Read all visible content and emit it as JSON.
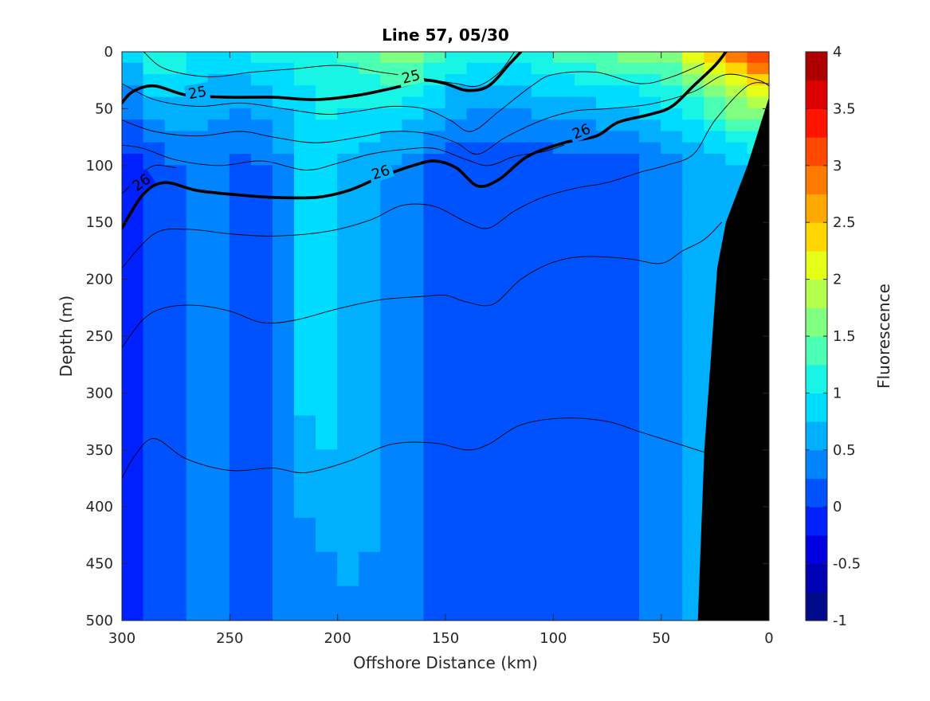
{
  "chart_data": {
    "type": "heatmap",
    "title": "Line 57, 05/30",
    "xlabel": "Offshore Distance (km)",
    "ylabel": "Depth (m)",
    "colorbar_label": "Fluorescence",
    "xlim": [
      300,
      0
    ],
    "ylim": [
      500,
      0
    ],
    "x_reversed": true,
    "y_reversed": true,
    "xticks": [
      300,
      250,
      200,
      150,
      100,
      50,
      0
    ],
    "yticks": [
      0,
      50,
      100,
      150,
      200,
      250,
      300,
      350,
      400,
      450,
      500
    ],
    "colorbar": {
      "min": -1,
      "max": 4,
      "step": 0.25,
      "ticks": [
        -1,
        -0.5,
        0,
        0.5,
        1,
        1.5,
        2,
        2.5,
        3,
        3.5,
        4
      ],
      "colors": [
        "#000a8a",
        "#0000b4",
        "#0000e0",
        "#0020ff",
        "#0052ff",
        "#0084ff",
        "#00b0ff",
        "#00dcff",
        "#18f5e6",
        "#4affb4",
        "#80ff80",
        "#b4ff4c",
        "#e6ff18",
        "#ffd600",
        "#ffa800",
        "#ff7a00",
        "#ff4800",
        "#ff1400",
        "#dc0000",
        "#ae0000"
      ]
    },
    "grid": "off",
    "fluorescence_field": {
      "x": [
        300,
        290,
        280,
        270,
        260,
        250,
        240,
        230,
        220,
        210,
        200,
        190,
        180,
        170,
        160,
        150,
        140,
        130,
        120,
        110,
        100,
        90,
        80,
        70,
        60,
        50,
        40,
        30,
        20,
        10,
        0
      ],
      "depth": [
        0,
        10,
        20,
        30,
        40,
        50,
        60,
        70,
        80,
        90,
        100,
        120,
        140,
        160,
        180,
        200,
        230,
        260,
        290,
        320,
        350,
        380,
        410,
        440,
        470,
        500
      ],
      "column_profiles": [
        {
          "x": 300,
          "top": 0.8,
          "mid": -0.2,
          "deep": -0.4
        },
        {
          "x": 290,
          "top": 1.3,
          "mid": -0.05,
          "deep": -0.1
        },
        {
          "x": 280,
          "top": 1.5,
          "mid": 0.2,
          "deep": 0.2
        },
        {
          "x": 260,
          "top": 0.9,
          "mid": 0.35,
          "deep": 0.3
        },
        {
          "x": 240,
          "top": 1.1,
          "mid": 0.1,
          "deep": 0.1
        },
        {
          "x": 220,
          "top": 1.2,
          "mid": 0.6,
          "deep": 0.3
        },
        {
          "x": 210,
          "top": 1.2,
          "mid": 0.95,
          "deep": 0.35
        },
        {
          "x": 190,
          "top": 1.5,
          "mid": 0.6,
          "deep": 0.5
        },
        {
          "x": 170,
          "top": 1.9,
          "mid": 0.45,
          "deep": 0.35
        },
        {
          "x": 150,
          "top": 1.4,
          "mid": 0.1,
          "deep": 0.1
        },
        {
          "x": 130,
          "top": 1.1,
          "mid": 0.1,
          "deep": 0.1
        },
        {
          "x": 100,
          "top": 1.4,
          "mid": 0.1,
          "deep": 0.1
        },
        {
          "x": 70,
          "top": 1.7,
          "mid": 0.15,
          "deep": 0.1
        },
        {
          "x": 50,
          "top": 1.7,
          "mid": 0.3,
          "deep": 0.3
        },
        {
          "x": 20,
          "top": 2.8,
          "mid": 0.7,
          "deep": 0.7
        },
        {
          "x": 0,
          "top": 3.8,
          "mid": 0.7,
          "deep": 0.7
        }
      ]
    },
    "seafloor": {
      "color": "#000000",
      "boundary": [
        {
          "x": 0,
          "depth": 40
        },
        {
          "x": 10,
          "depth": 100
        },
        {
          "x": 20,
          "depth": 150
        },
        {
          "x": 24,
          "depth": 190
        },
        {
          "x": 30,
          "depth": 350
        },
        {
          "x": 33,
          "depth": 500
        }
      ]
    },
    "density_contours": [
      {
        "level": 25,
        "bold": true,
        "label": "25",
        "points": [
          [
            300,
            45
          ],
          [
            295,
            35
          ],
          [
            285,
            30
          ],
          [
            270,
            38
          ],
          [
            250,
            40
          ],
          [
            230,
            40
          ],
          [
            210,
            42
          ],
          [
            190,
            38
          ],
          [
            170,
            30
          ],
          [
            160,
            25
          ],
          [
            150,
            28
          ],
          [
            140,
            34
          ],
          [
            130,
            30
          ],
          [
            120,
            10
          ],
          [
            115,
            0
          ]
        ]
      },
      {
        "level": 26,
        "bold": true,
        "label": "26",
        "points": [
          [
            300,
            155
          ],
          [
            290,
            125
          ],
          [
            280,
            115
          ],
          [
            265,
            122
          ],
          [
            245,
            126
          ],
          [
            230,
            128
          ],
          [
            210,
            128
          ],
          [
            195,
            122
          ],
          [
            180,
            110
          ],
          [
            165,
            100
          ],
          [
            155,
            96
          ],
          [
            145,
            102
          ],
          [
            135,
            118
          ],
          [
            125,
            112
          ],
          [
            112,
            92
          ],
          [
            95,
            80
          ],
          [
            80,
            74
          ],
          [
            70,
            62
          ],
          [
            55,
            55
          ],
          [
            45,
            48
          ],
          [
            35,
            30
          ],
          [
            25,
            12
          ],
          [
            20,
            0
          ]
        ]
      },
      {
        "level": null,
        "bold": false,
        "label": "",
        "points": [
          [
            290,
            0
          ],
          [
            280,
            15
          ],
          [
            260,
            22
          ],
          [
            240,
            18
          ],
          [
            220,
            15
          ],
          [
            200,
            12
          ],
          [
            180,
            18
          ],
          [
            165,
            22
          ],
          [
            145,
            28
          ],
          [
            135,
            30
          ],
          [
            125,
            18
          ],
          [
            118,
            0
          ]
        ]
      },
      {
        "level": null,
        "bold": false,
        "label": "",
        "points": [
          [
            300,
            28
          ],
          [
            285,
            42
          ],
          [
            265,
            48
          ],
          [
            245,
            45
          ],
          [
            225,
            50
          ],
          [
            205,
            55
          ],
          [
            190,
            52
          ],
          [
            175,
            48
          ],
          [
            160,
            50
          ],
          [
            148,
            60
          ],
          [
            138,
            70
          ],
          [
            125,
            52
          ],
          [
            110,
            30
          ],
          [
            100,
            20
          ],
          [
            80,
            18
          ],
          [
            60,
            28
          ],
          [
            45,
            22
          ],
          [
            30,
            10
          ]
        ]
      },
      {
        "level": null,
        "bold": false,
        "label": "",
        "points": [
          [
            300,
            60
          ],
          [
            285,
            70
          ],
          [
            265,
            74
          ],
          [
            245,
            70
          ],
          [
            230,
            75
          ],
          [
            210,
            80
          ],
          [
            190,
            75
          ],
          [
            175,
            70
          ],
          [
            158,
            72
          ],
          [
            145,
            80
          ],
          [
            135,
            90
          ],
          [
            122,
            75
          ],
          [
            105,
            60
          ],
          [
            90,
            52
          ],
          [
            75,
            50
          ],
          [
            55,
            46
          ],
          [
            35,
            35
          ],
          [
            20,
            20
          ],
          [
            5,
            25
          ],
          [
            0,
            30
          ]
        ]
      },
      {
        "level": null,
        "bold": false,
        "label": "",
        "points": [
          [
            300,
            82
          ],
          [
            290,
            85
          ],
          [
            275,
            95
          ],
          [
            255,
            100
          ],
          [
            235,
            96
          ],
          [
            215,
            104
          ],
          [
            200,
            98
          ],
          [
            185,
            90
          ],
          [
            170,
            86
          ],
          [
            155,
            85
          ],
          [
            140,
            95
          ],
          [
            130,
            100
          ],
          [
            118,
            92
          ],
          [
            105,
            88
          ],
          [
            95,
            82
          ]
        ]
      },
      {
        "level": null,
        "bold": false,
        "label": "",
        "points": [
          [
            300,
            125
          ],
          [
            292,
            110
          ],
          [
            285,
            100
          ],
          [
            275,
            102
          ]
        ]
      },
      {
        "level": null,
        "bold": false,
        "label": "",
        "points": [
          [
            300,
            190
          ],
          [
            285,
            160
          ],
          [
            270,
            156
          ],
          [
            250,
            160
          ],
          [
            230,
            162
          ],
          [
            205,
            158
          ],
          [
            185,
            148
          ],
          [
            170,
            135
          ],
          [
            155,
            136
          ],
          [
            140,
            150
          ],
          [
            130,
            155
          ],
          [
            118,
            140
          ],
          [
            105,
            128
          ],
          [
            90,
            120
          ],
          [
            75,
            115
          ],
          [
            60,
            106
          ],
          [
            48,
            100
          ],
          [
            35,
            90
          ],
          [
            25,
            60
          ],
          [
            10,
            30
          ],
          [
            0,
            28
          ]
        ]
      },
      {
        "level": null,
        "bold": false,
        "label": "",
        "points": [
          [
            300,
            260
          ],
          [
            290,
            235
          ],
          [
            280,
            225
          ],
          [
            265,
            223
          ],
          [
            250,
            228
          ],
          [
            235,
            238
          ],
          [
            220,
            236
          ],
          [
            200,
            226
          ],
          [
            180,
            218
          ],
          [
            160,
            215
          ],
          [
            150,
            214
          ],
          [
            140,
            220
          ],
          [
            128,
            222
          ],
          [
            115,
            200
          ],
          [
            100,
            185
          ],
          [
            85,
            180
          ],
          [
            65,
            182
          ],
          [
            50,
            186
          ],
          [
            40,
            175
          ],
          [
            30,
            165
          ],
          [
            22,
            150
          ]
        ]
      },
      {
        "level": null,
        "bold": false,
        "label": "",
        "points": [
          [
            300,
            375
          ],
          [
            294,
            355
          ],
          [
            285,
            340
          ],
          [
            270,
            358
          ],
          [
            250,
            368
          ],
          [
            230,
            366
          ],
          [
            215,
            370
          ],
          [
            195,
            360
          ],
          [
            175,
            345
          ],
          [
            155,
            344
          ],
          [
            140,
            350
          ],
          [
            130,
            345
          ],
          [
            115,
            328
          ],
          [
            95,
            322
          ],
          [
            75,
            325
          ],
          [
            60,
            334
          ],
          [
            45,
            343
          ],
          [
            30,
            352
          ]
        ]
      }
    ]
  }
}
